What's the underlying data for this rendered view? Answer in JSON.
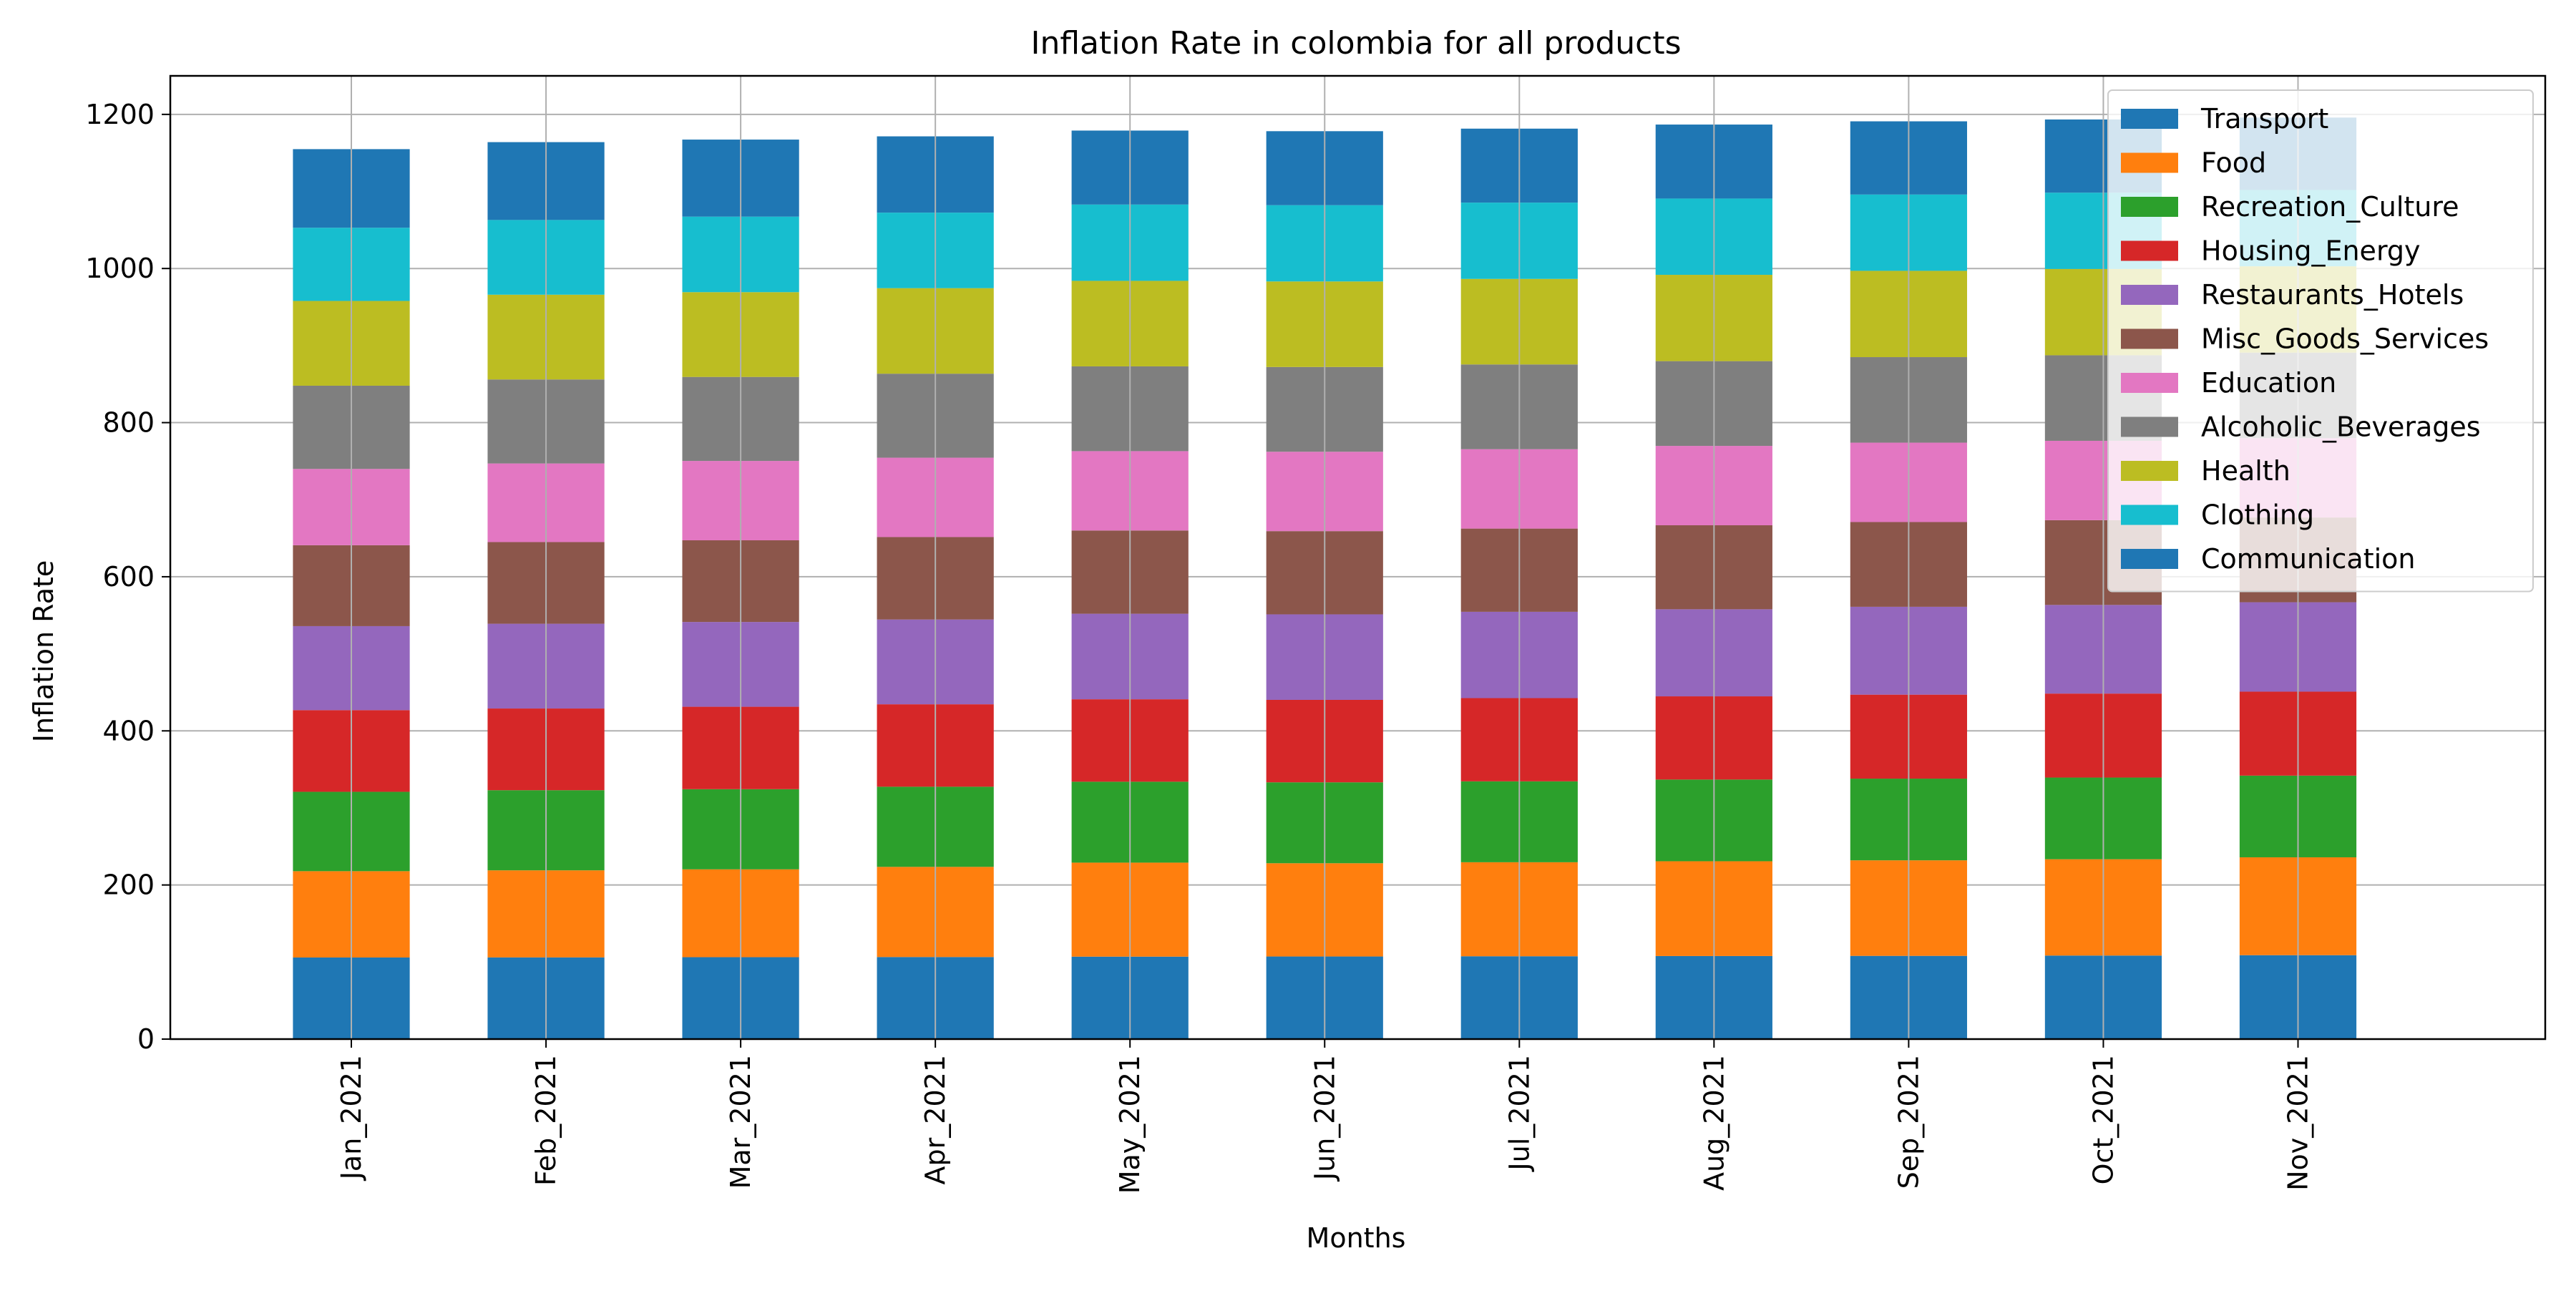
{
  "chart_data": {
    "type": "bar",
    "stacked": true,
    "title": "Inflation Rate in colombia for all products",
    "xlabel": "Months",
    "ylabel": "Inflation Rate",
    "ylim": [
      0,
      1250
    ],
    "yticks": [
      0,
      200,
      400,
      600,
      800,
      1000,
      1200
    ],
    "grid": true,
    "legend_position": "top-right",
    "categories": [
      "Jan_2021",
      "Feb_2021",
      "Mar_2021",
      "Apr_2021",
      "May_2021",
      "Jun_2021",
      "Jul_2021",
      "Aug_2021",
      "Sep_2021",
      "Oct_2021",
      "Nov_2021"
    ],
    "series": [
      {
        "name": "Transport",
        "color": "#1f77b4",
        "values": [
          105.9,
          106.0,
          106.3,
          106.5,
          107.0,
          107.2,
          107.5,
          107.8,
          108.0,
          108.4,
          108.9
        ]
      },
      {
        "name": "Food",
        "color": "#ff7f0e",
        "values": [
          112.0,
          113.0,
          114.0,
          117.0,
          122.0,
          121.0,
          122.0,
          123.0,
          124.0,
          125.0,
          127.0
        ]
      },
      {
        "name": "Recreation_Culture",
        "color": "#2ca02c",
        "values": [
          103.0,
          104.0,
          104.0,
          104.0,
          105.0,
          105.0,
          105.0,
          106.0,
          106.0,
          106.0,
          106.0
        ]
      },
      {
        "name": "Housing_Energy",
        "color": "#d62728",
        "values": [
          106.0,
          106.0,
          107.0,
          107.0,
          107.0,
          107.0,
          108.0,
          108.0,
          109.0,
          109.0,
          109.0
        ]
      },
      {
        "name": "Restaurants_Hotels",
        "color": "#9467bd",
        "values": [
          109.0,
          110.0,
          110.0,
          110.0,
          111.0,
          111.0,
          112.0,
          113.0,
          114.0,
          115.0,
          116.0
        ]
      },
      {
        "name": "Misc_Goods_Services",
        "color": "#8c564b",
        "values": [
          105.0,
          106.0,
          106.0,
          107.0,
          108.0,
          108.0,
          108.0,
          109.0,
          110.0,
          110.0,
          110.0
        ]
      },
      {
        "name": "Education",
        "color": "#e377c2",
        "values": [
          99.0,
          102.0,
          103.0,
          103.0,
          103.0,
          103.0,
          103.0,
          103.0,
          103.0,
          103.0,
          103.0
        ]
      },
      {
        "name": "Alcoholic_Beverages",
        "color": "#7f7f7f",
        "values": [
          108.0,
          109.0,
          109.0,
          109.0,
          110.0,
          110.0,
          110.0,
          110.0,
          111.0,
          111.0,
          111.0
        ]
      },
      {
        "name": "Health",
        "color": "#bcbd22",
        "values": [
          110.0,
          110.0,
          110.0,
          111.0,
          111.0,
          111.0,
          111.0,
          112.0,
          112.0,
          112.0,
          112.0
        ]
      },
      {
        "name": "Clothing",
        "color": "#17becf",
        "values": [
          95.0,
          97.0,
          98.0,
          98.0,
          99.0,
          99.0,
          99.0,
          99.0,
          99.0,
          99.0,
          99.0
        ]
      },
      {
        "name": "Communication",
        "color": "#1f77b4",
        "values": [
          102.0,
          101.0,
          100.0,
          99.0,
          96.0,
          96.0,
          96.0,
          96.0,
          95.0,
          95.0,
          94.0
        ]
      }
    ]
  }
}
